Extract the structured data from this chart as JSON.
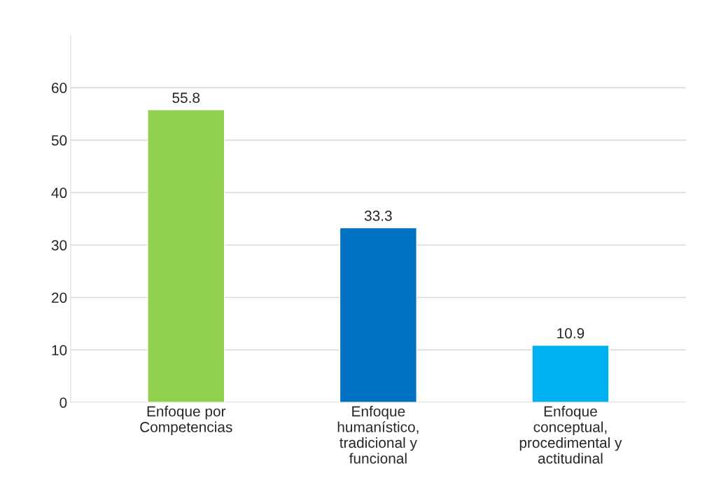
{
  "chart_data": {
    "type": "bar",
    "categories": [
      "Enfoque por\nCompetencias",
      "Enfoque\nhumanístico,\ntradicional y\nfuncional",
      "Enfoque\nconceptual,\nprocedimental y\nactitudinal"
    ],
    "values": [
      55.8,
      33.3,
      10.9
    ],
    "colors": [
      "#92d050",
      "#0070c0",
      "#00b0f0"
    ],
    "ylim": [
      0,
      70
    ],
    "yticks": [
      0,
      10,
      20,
      30,
      40,
      50,
      60
    ],
    "grid": "y",
    "data_labels": true
  }
}
